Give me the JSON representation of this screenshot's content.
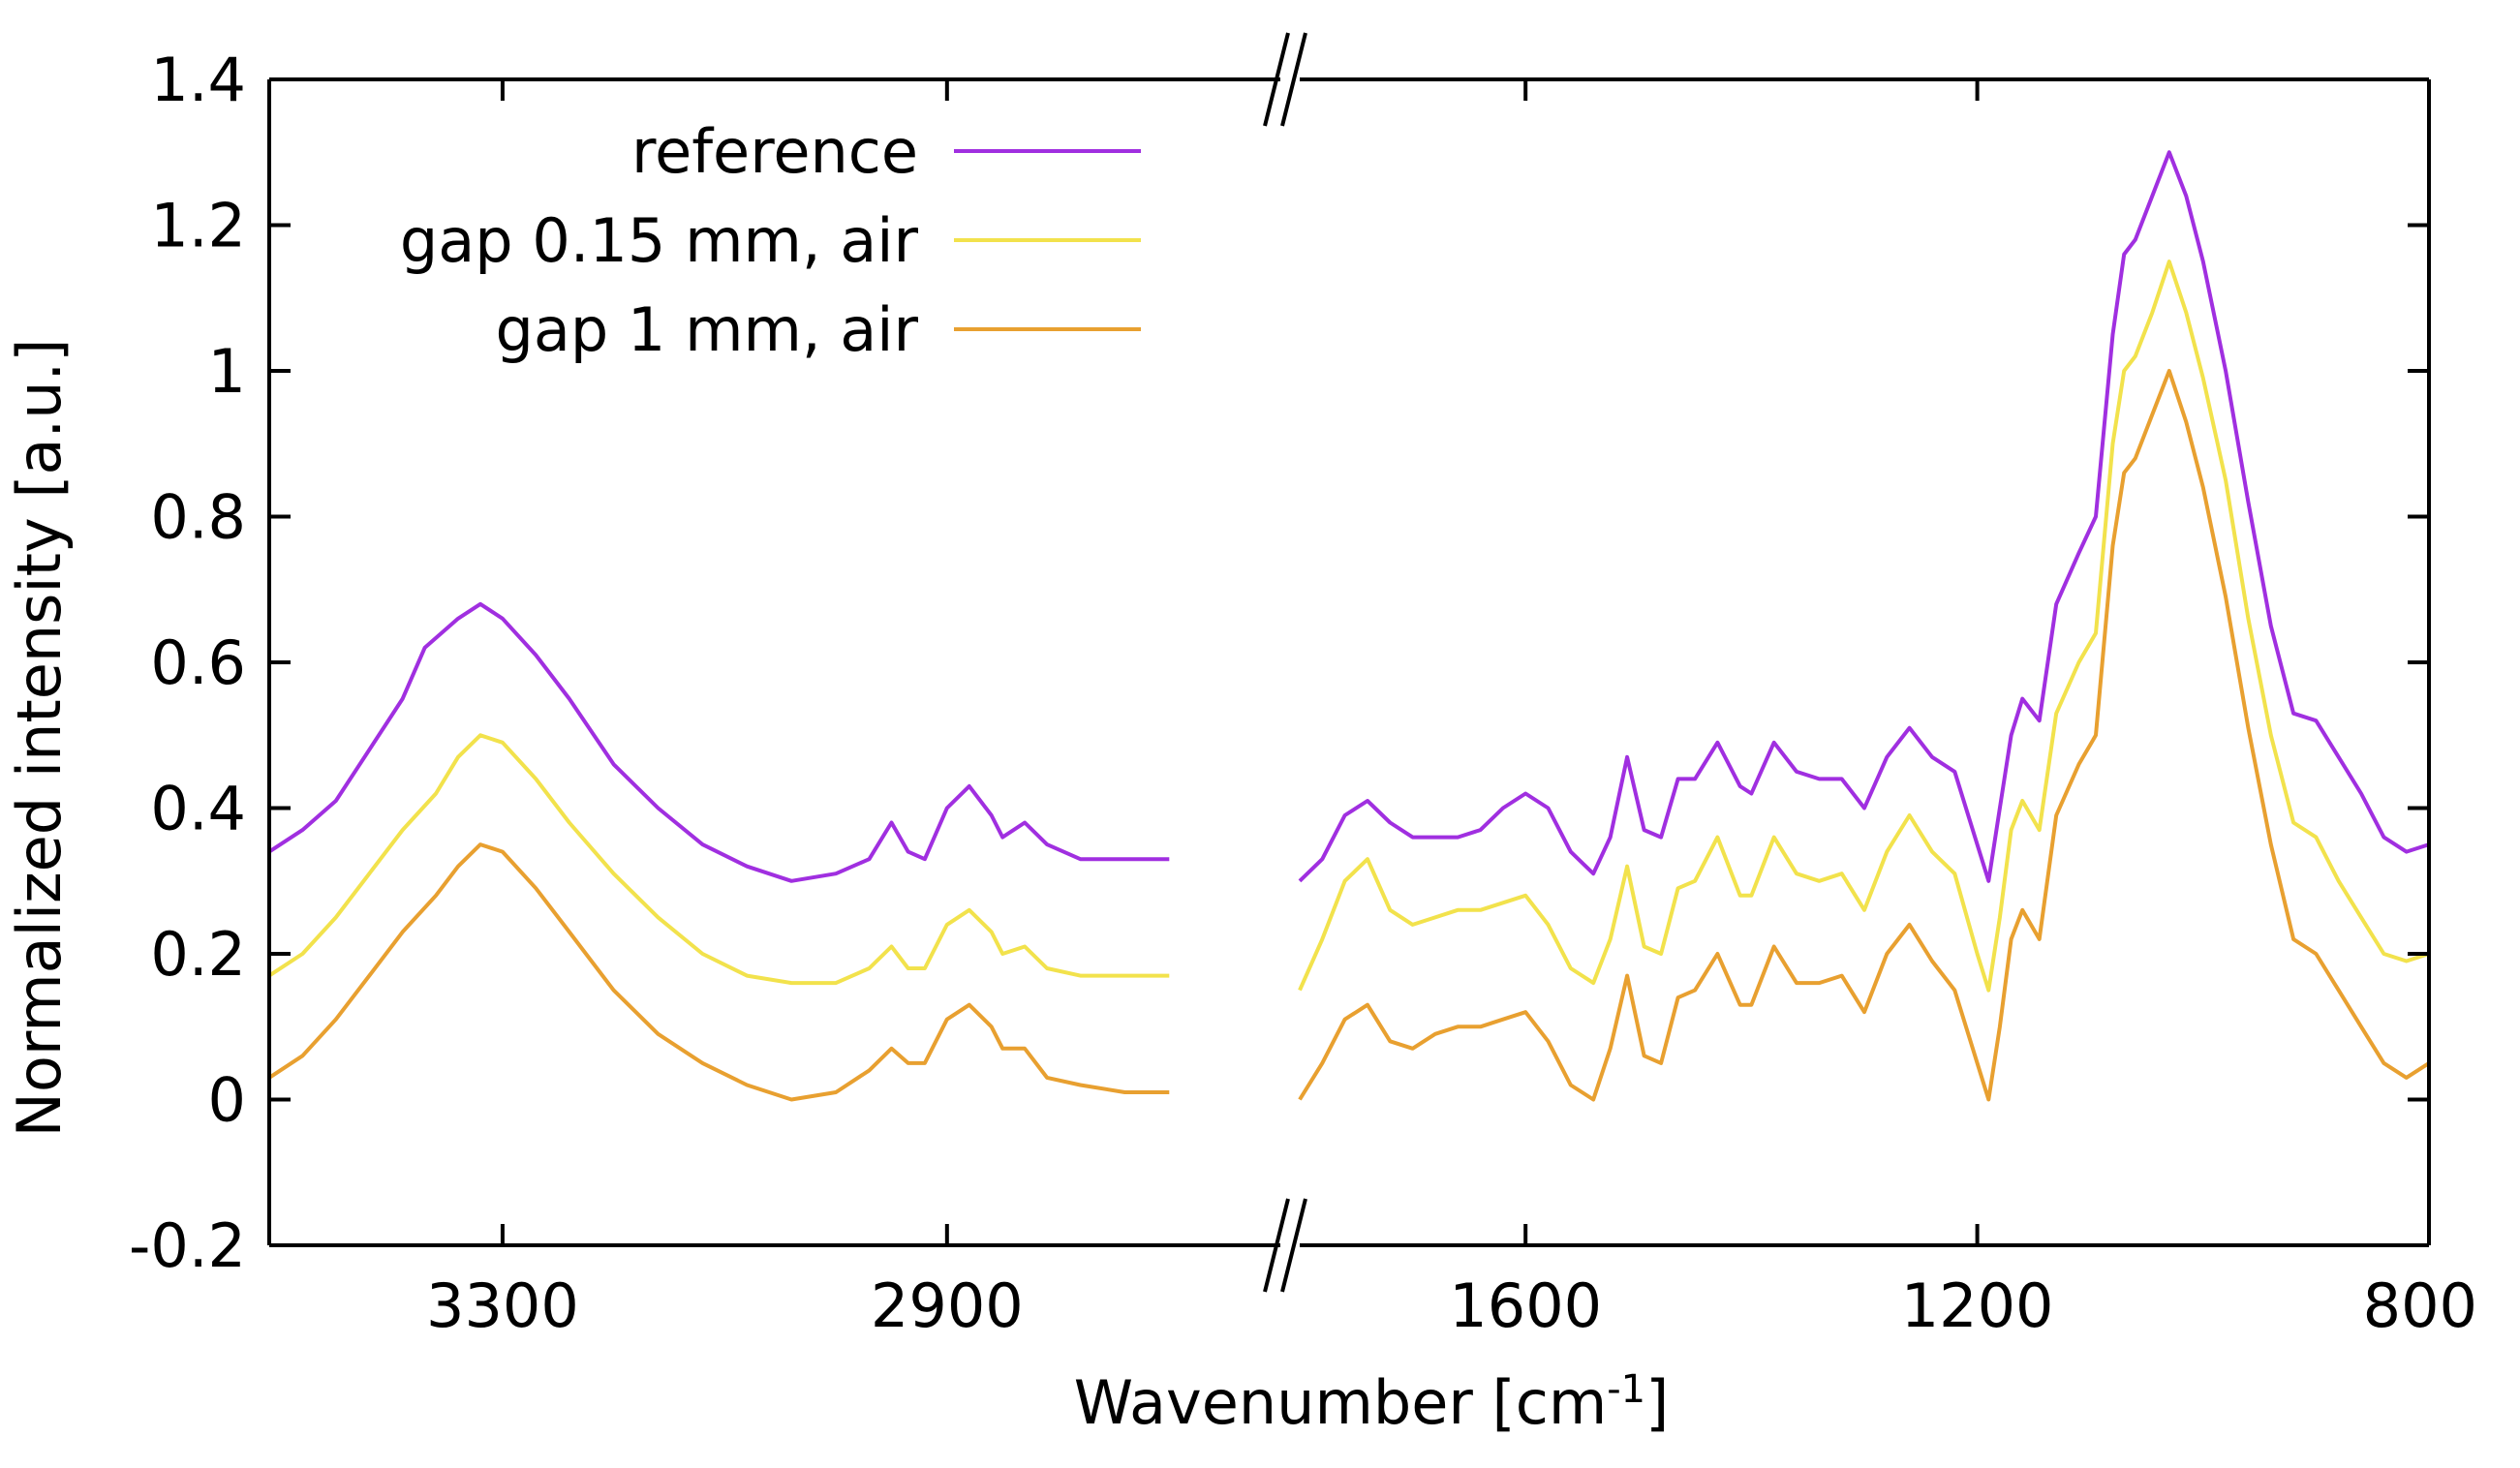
{
  "chart_data": {
    "type": "line",
    "title": "",
    "xlabel": "Wavenumber [cm",
    "xlabel_sup": "-1",
    "xlabel_end": "]",
    "ylabel": "Normalized intensity [a.u.]",
    "ylim": [
      -0.2,
      1.4
    ],
    "yticks": [
      "-0.2",
      "0",
      "0.2",
      "0.4",
      "0.6",
      "0.8",
      "1",
      "1.2",
      "1.4"
    ],
    "ytick_values": [
      -0.2,
      0,
      0.2,
      0.4,
      0.6,
      0.8,
      1,
      1.2,
      1.4
    ],
    "x_reversed": true,
    "axis_break": true,
    "x_segments": [
      {
        "xlim": [
          3510,
          2600
        ],
        "ticks": [
          "3300",
          "2900"
        ],
        "tick_values": [
          3300,
          2900
        ]
      },
      {
        "xlim": [
          1800,
          800
        ],
        "ticks": [
          "1600",
          "1200",
          "800"
        ],
        "tick_values": [
          1600,
          1200,
          800
        ]
      }
    ],
    "grid": false,
    "legend_position": "top-left",
    "series": [
      {
        "name": "reference",
        "color": "#A02FE0",
        "segments": [
          [
            [
              3510,
              0.34
            ],
            [
              3480,
              0.37
            ],
            [
              3450,
              0.41
            ],
            [
              3420,
              0.48
            ],
            [
              3390,
              0.55
            ],
            [
              3370,
              0.62
            ],
            [
              3340,
              0.66
            ],
            [
              3320,
              0.68
            ],
            [
              3300,
              0.66
            ],
            [
              3270,
              0.61
            ],
            [
              3240,
              0.55
            ],
            [
              3200,
              0.46
            ],
            [
              3160,
              0.4
            ],
            [
              3120,
              0.35
            ],
            [
              3080,
              0.32
            ],
            [
              3040,
              0.3
            ],
            [
              3000,
              0.31
            ],
            [
              2970,
              0.33
            ],
            [
              2950,
              0.38
            ],
            [
              2935,
              0.34
            ],
            [
              2920,
              0.33
            ],
            [
              2900,
              0.4
            ],
            [
              2880,
              0.43
            ],
            [
              2860,
              0.39
            ],
            [
              2850,
              0.36
            ],
            [
              2830,
              0.38
            ],
            [
              2810,
              0.35
            ],
            [
              2780,
              0.33
            ],
            [
              2740,
              0.33
            ],
            [
              2700,
              0.33
            ]
          ],
          [
            [
              1800,
              0.3
            ],
            [
              1780,
              0.33
            ],
            [
              1760,
              0.39
            ],
            [
              1740,
              0.41
            ],
            [
              1720,
              0.38
            ],
            [
              1700,
              0.36
            ],
            [
              1680,
              0.36
            ],
            [
              1660,
              0.36
            ],
            [
              1640,
              0.37
            ],
            [
              1620,
              0.4
            ],
            [
              1600,
              0.42
            ],
            [
              1580,
              0.4
            ],
            [
              1560,
              0.34
            ],
            [
              1540,
              0.31
            ],
            [
              1525,
              0.36
            ],
            [
              1510,
              0.47
            ],
            [
              1495,
              0.37
            ],
            [
              1480,
              0.36
            ],
            [
              1465,
              0.44
            ],
            [
              1450,
              0.44
            ],
            [
              1430,
              0.49
            ],
            [
              1410,
              0.43
            ],
            [
              1400,
              0.42
            ],
            [
              1380,
              0.49
            ],
            [
              1360,
              0.45
            ],
            [
              1340,
              0.44
            ],
            [
              1320,
              0.44
            ],
            [
              1300,
              0.4
            ],
            [
              1280,
              0.47
            ],
            [
              1260,
              0.51
            ],
            [
              1240,
              0.47
            ],
            [
              1220,
              0.45
            ],
            [
              1200,
              0.35
            ],
            [
              1190,
              0.3
            ],
            [
              1180,
              0.4
            ],
            [
              1170,
              0.5
            ],
            [
              1160,
              0.55
            ],
            [
              1145,
              0.52
            ],
            [
              1130,
              0.68
            ],
            [
              1110,
              0.75
            ],
            [
              1095,
              0.8
            ],
            [
              1080,
              1.05
            ],
            [
              1070,
              1.16
            ],
            [
              1060,
              1.18
            ],
            [
              1045,
              1.24
            ],
            [
              1030,
              1.3
            ],
            [
              1015,
              1.24
            ],
            [
              1000,
              1.15
            ],
            [
              980,
              1.0
            ],
            [
              960,
              0.82
            ],
            [
              940,
              0.65
            ],
            [
              920,
              0.53
            ],
            [
              900,
              0.52
            ],
            [
              880,
              0.47
            ],
            [
              860,
              0.42
            ],
            [
              840,
              0.36
            ],
            [
              820,
              0.34
            ],
            [
              800,
              0.35
            ]
          ]
        ]
      },
      {
        "name": "gap 0.15 mm, air",
        "color": "#F2E24C",
        "segments": [
          [
            [
              3510,
              0.17
            ],
            [
              3480,
              0.2
            ],
            [
              3450,
              0.25
            ],
            [
              3420,
              0.31
            ],
            [
              3390,
              0.37
            ],
            [
              3360,
              0.42
            ],
            [
              3340,
              0.47
            ],
            [
              3320,
              0.5
            ],
            [
              3300,
              0.49
            ],
            [
              3270,
              0.44
            ],
            [
              3240,
              0.38
            ],
            [
              3200,
              0.31
            ],
            [
              3160,
              0.25
            ],
            [
              3120,
              0.2
            ],
            [
              3080,
              0.17
            ],
            [
              3040,
              0.16
            ],
            [
              3000,
              0.16
            ],
            [
              2970,
              0.18
            ],
            [
              2950,
              0.21
            ],
            [
              2935,
              0.18
            ],
            [
              2920,
              0.18
            ],
            [
              2900,
              0.24
            ],
            [
              2880,
              0.26
            ],
            [
              2860,
              0.23
            ],
            [
              2850,
              0.2
            ],
            [
              2830,
              0.21
            ],
            [
              2810,
              0.18
            ],
            [
              2780,
              0.17
            ],
            [
              2740,
              0.17
            ],
            [
              2700,
              0.17
            ]
          ],
          [
            [
              1800,
              0.15
            ],
            [
              1780,
              0.22
            ],
            [
              1760,
              0.3
            ],
            [
              1740,
              0.33
            ],
            [
              1720,
              0.26
            ],
            [
              1700,
              0.24
            ],
            [
              1680,
              0.25
            ],
            [
              1660,
              0.26
            ],
            [
              1640,
              0.26
            ],
            [
              1620,
              0.27
            ],
            [
              1600,
              0.28
            ],
            [
              1580,
              0.24
            ],
            [
              1560,
              0.18
            ],
            [
              1540,
              0.16
            ],
            [
              1525,
              0.22
            ],
            [
              1510,
              0.32
            ],
            [
              1495,
              0.21
            ],
            [
              1480,
              0.2
            ],
            [
              1465,
              0.29
            ],
            [
              1450,
              0.3
            ],
            [
              1430,
              0.36
            ],
            [
              1410,
              0.28
            ],
            [
              1400,
              0.28
            ],
            [
              1380,
              0.36
            ],
            [
              1360,
              0.31
            ],
            [
              1340,
              0.3
            ],
            [
              1320,
              0.31
            ],
            [
              1300,
              0.26
            ],
            [
              1280,
              0.34
            ],
            [
              1260,
              0.39
            ],
            [
              1240,
              0.34
            ],
            [
              1220,
              0.31
            ],
            [
              1200,
              0.2
            ],
            [
              1190,
              0.15
            ],
            [
              1180,
              0.25
            ],
            [
              1170,
              0.37
            ],
            [
              1160,
              0.41
            ],
            [
              1145,
              0.37
            ],
            [
              1130,
              0.53
            ],
            [
              1110,
              0.6
            ],
            [
              1095,
              0.64
            ],
            [
              1080,
              0.9
            ],
            [
              1070,
              1.0
            ],
            [
              1060,
              1.02
            ],
            [
              1045,
              1.08
            ],
            [
              1030,
              1.15
            ],
            [
              1015,
              1.08
            ],
            [
              1000,
              0.99
            ],
            [
              980,
              0.85
            ],
            [
              960,
              0.66
            ],
            [
              940,
              0.5
            ],
            [
              920,
              0.38
            ],
            [
              900,
              0.36
            ],
            [
              880,
              0.3
            ],
            [
              860,
              0.25
            ],
            [
              840,
              0.2
            ],
            [
              820,
              0.19
            ],
            [
              800,
              0.2
            ]
          ]
        ]
      },
      {
        "name": "gap 1 mm, air",
        "color": "#E8A030",
        "segments": [
          [
            [
              3510,
              0.03
            ],
            [
              3480,
              0.06
            ],
            [
              3450,
              0.11
            ],
            [
              3420,
              0.17
            ],
            [
              3390,
              0.23
            ],
            [
              3360,
              0.28
            ],
            [
              3340,
              0.32
            ],
            [
              3320,
              0.35
            ],
            [
              3300,
              0.34
            ],
            [
              3270,
              0.29
            ],
            [
              3240,
              0.23
            ],
            [
              3200,
              0.15
            ],
            [
              3160,
              0.09
            ],
            [
              3120,
              0.05
            ],
            [
              3080,
              0.02
            ],
            [
              3040,
              0.0
            ],
            [
              3000,
              0.01
            ],
            [
              2970,
              0.04
            ],
            [
              2950,
              0.07
            ],
            [
              2935,
              0.05
            ],
            [
              2920,
              0.05
            ],
            [
              2900,
              0.11
            ],
            [
              2880,
              0.13
            ],
            [
              2860,
              0.1
            ],
            [
              2850,
              0.07
            ],
            [
              2830,
              0.07
            ],
            [
              2810,
              0.03
            ],
            [
              2780,
              0.02
            ],
            [
              2740,
              0.01
            ],
            [
              2700,
              0.01
            ]
          ],
          [
            [
              1800,
              0.0
            ],
            [
              1780,
              0.05
            ],
            [
              1760,
              0.11
            ],
            [
              1740,
              0.13
            ],
            [
              1720,
              0.08
            ],
            [
              1700,
              0.07
            ],
            [
              1680,
              0.09
            ],
            [
              1660,
              0.1
            ],
            [
              1640,
              0.1
            ],
            [
              1620,
              0.11
            ],
            [
              1600,
              0.12
            ],
            [
              1580,
              0.08
            ],
            [
              1560,
              0.02
            ],
            [
              1540,
              0.0
            ],
            [
              1525,
              0.07
            ],
            [
              1510,
              0.17
            ],
            [
              1495,
              0.06
            ],
            [
              1480,
              0.05
            ],
            [
              1465,
              0.14
            ],
            [
              1450,
              0.15
            ],
            [
              1430,
              0.2
            ],
            [
              1410,
              0.13
            ],
            [
              1400,
              0.13
            ],
            [
              1380,
              0.21
            ],
            [
              1360,
              0.16
            ],
            [
              1340,
              0.16
            ],
            [
              1320,
              0.17
            ],
            [
              1300,
              0.12
            ],
            [
              1280,
              0.2
            ],
            [
              1260,
              0.24
            ],
            [
              1240,
              0.19
            ],
            [
              1220,
              0.15
            ],
            [
              1200,
              0.05
            ],
            [
              1190,
              0.0
            ],
            [
              1180,
              0.1
            ],
            [
              1170,
              0.22
            ],
            [
              1160,
              0.26
            ],
            [
              1145,
              0.22
            ],
            [
              1130,
              0.39
            ],
            [
              1110,
              0.46
            ],
            [
              1095,
              0.5
            ],
            [
              1080,
              0.76
            ],
            [
              1070,
              0.86
            ],
            [
              1060,
              0.88
            ],
            [
              1045,
              0.94
            ],
            [
              1030,
              1.0
            ],
            [
              1015,
              0.93
            ],
            [
              1000,
              0.84
            ],
            [
              980,
              0.69
            ],
            [
              960,
              0.51
            ],
            [
              940,
              0.35
            ],
            [
              920,
              0.22
            ],
            [
              900,
              0.2
            ],
            [
              880,
              0.15
            ],
            [
              860,
              0.1
            ],
            [
              840,
              0.05
            ],
            [
              820,
              0.03
            ],
            [
              800,
              0.05
            ]
          ]
        ]
      }
    ]
  }
}
